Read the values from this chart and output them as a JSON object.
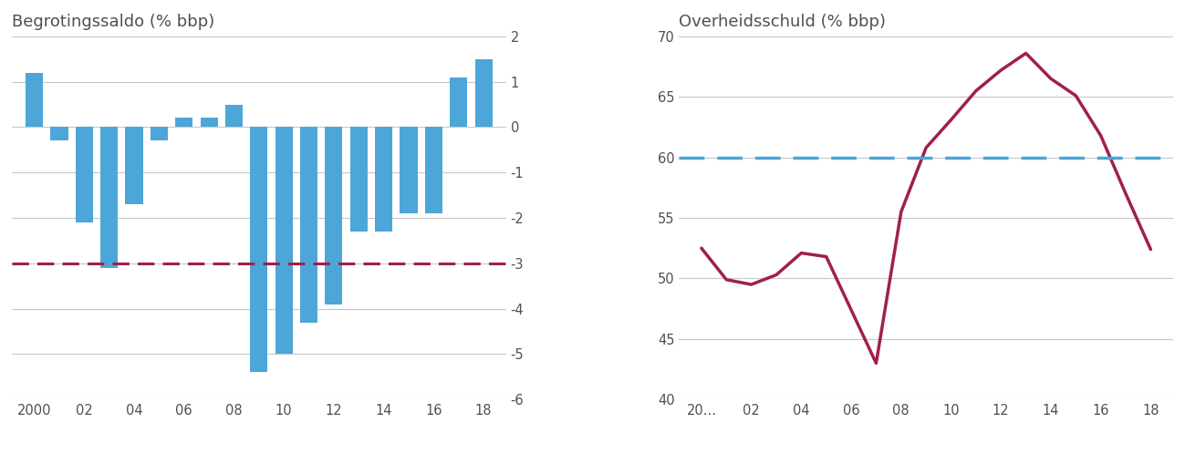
{
  "bar_title": "Begrotingssaldo (% bbp)",
  "line_title": "Overheidsschuld (% bbp)",
  "bar_years": [
    2000,
    2001,
    2002,
    2003,
    2004,
    2005,
    2006,
    2007,
    2008,
    2009,
    2010,
    2011,
    2012,
    2013,
    2014,
    2015,
    2016,
    2017,
    2018
  ],
  "bar_values": [
    1.2,
    -0.3,
    -2.1,
    -3.1,
    -1.7,
    -0.3,
    0.2,
    0.2,
    0.5,
    -5.4,
    -5.0,
    -4.3,
    -3.9,
    -2.3,
    -2.3,
    -1.9,
    -1.9,
    1.1,
    1.5
  ],
  "bar_color": "#4DA6D8",
  "bar_ref_line": -3.0,
  "bar_ref_color": "#A0204A",
  "bar_ylim": [
    -6,
    2
  ],
  "bar_yticks": [
    2,
    1,
    0,
    -1,
    -2,
    -3,
    -4,
    -5,
    -6
  ],
  "bar_xtick_labels": [
    "2000",
    "02",
    "04",
    "06",
    "08",
    "10",
    "12",
    "14",
    "16",
    "18"
  ],
  "bar_xtick_positions": [
    2000,
    2002,
    2004,
    2006,
    2008,
    2010,
    2012,
    2014,
    2016,
    2018
  ],
  "line_x": [
    2000,
    2001,
    2002,
    2003,
    2004,
    2005,
    2006,
    2007,
    2008,
    2009,
    2010,
    2011,
    2012,
    2013,
    2014,
    2015,
    2016,
    2017,
    2018
  ],
  "line_y": [
    52.5,
    49.9,
    49.5,
    50.3,
    52.1,
    51.8,
    47.4,
    43.0,
    55.5,
    60.8,
    63.1,
    65.5,
    67.2,
    68.6,
    66.5,
    65.1,
    61.8,
    57.0,
    52.4
  ],
  "line_color": "#A0204A",
  "line_ref_line": 60,
  "line_ref_color": "#4DA6D8",
  "line_ylim": [
    40,
    70
  ],
  "line_yticks": [
    40,
    45,
    50,
    55,
    60,
    65,
    70
  ],
  "line_xtick_labels": [
    "20...",
    "02",
    "04",
    "06",
    "08",
    "10",
    "12",
    "14",
    "16",
    "18"
  ],
  "line_xtick_positions": [
    2000,
    2002,
    2004,
    2006,
    2008,
    2010,
    2012,
    2014,
    2016,
    2018
  ],
  "bg_color": "#FFFFFF",
  "grid_color": "#C8C8C8",
  "text_color": "#505050",
  "title_fontsize": 13,
  "tick_fontsize": 10.5
}
